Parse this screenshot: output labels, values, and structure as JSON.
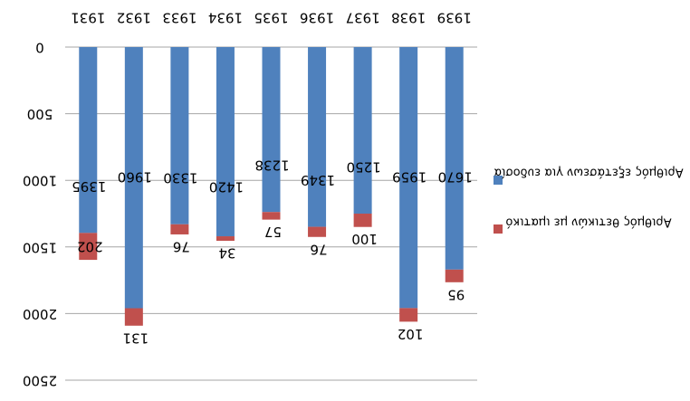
{
  "chart_data": {
    "type": "bar",
    "stacked": true,
    "orientation": "vertical-inverted-y",
    "image_mirrored": true,
    "categories": [
      "1931",
      "1932",
      "1933",
      "1934",
      "1935",
      "1936",
      "1937",
      "1938",
      "1939"
    ],
    "series": [
      {
        "name": "Αριθμός εξετάσεων για ευδοσία",
        "color": "#4f81bd",
        "values": [
          1395,
          1960,
          1330,
          1420,
          1238,
          1349,
          1250,
          1959,
          1670
        ],
        "labels": [
          "1395",
          "1960",
          "1330",
          "1420",
          "1238",
          "1349",
          "1250",
          "1959",
          "1670"
        ]
      },
      {
        "name": "Αριθμός θετικών με ιματικό",
        "color": "#c0504d",
        "values": [
          202,
          131,
          76,
          34,
          57,
          76,
          100,
          102,
          95
        ],
        "labels": [
          "202",
          "131",
          "76",
          "34",
          "57",
          "76",
          "100",
          "102",
          "95"
        ]
      }
    ],
    "ylim": [
      0,
      2500
    ],
    "yticks": [
      0,
      500,
      1000,
      1500,
      2000,
      2500
    ],
    "ytick_labels": [
      "0",
      "500",
      "1000",
      "1500",
      "2000",
      "2500"
    ],
    "grid": true,
    "legend_position": "right"
  }
}
